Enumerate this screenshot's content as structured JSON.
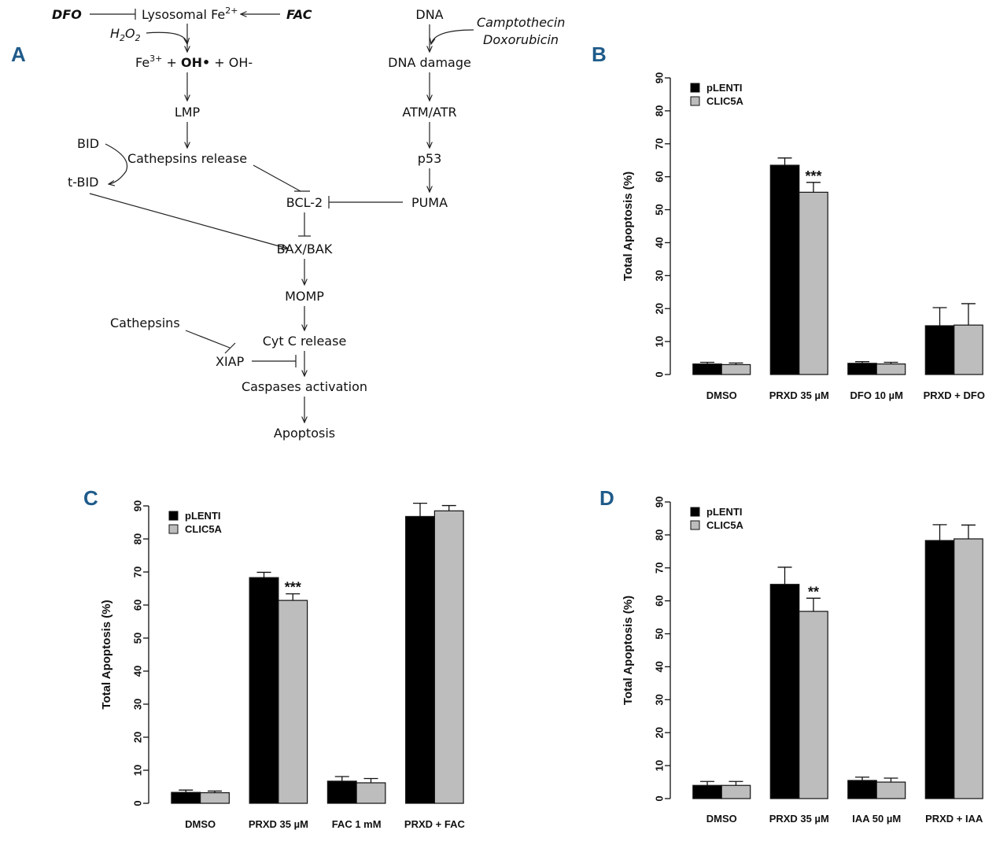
{
  "panel_labels": {
    "A": "A",
    "B": "B",
    "C": "C",
    "D": "D"
  },
  "pathway": {
    "dfo": "DFO",
    "lysosomal": "Lysosomal Fe",
    "lysosomal_sup": "2+",
    "fac": "FAC",
    "h2o2": "H",
    "h2o2_2": "2",
    "h2o2_o": "O",
    "h2o2_3": "2",
    "fe3": "Fe",
    "fe3_sup": "3+",
    "plus1": " + ",
    "oh_radical": "OH•",
    "plus2": " + OH-",
    "lmp": "LMP",
    "cathepsins_release": "Cathepsins release",
    "bid": "BID",
    "tbid": "t-BID",
    "bcl2": "BCL-2",
    "baxbak": "BAX/BAK",
    "momp": "MOMP",
    "cathepsins": "Cathepsins",
    "cytc": "Cyt C release",
    "xiap": "XIAP",
    "caspases": "Caspases activation",
    "apoptosis": "Apoptosis",
    "dna": "DNA",
    "camptothecin": "Camptothecin",
    "doxorubicin": "Doxorubicin",
    "dna_damage": "DNA damage",
    "atm": "ATM/ATR",
    "p53": "p53",
    "puma": "PUMA"
  },
  "chart_data": [
    {
      "panel": "B",
      "type": "bar",
      "ylabel": "Total Apoptosis (%)",
      "ylim": [
        0,
        90
      ],
      "yticks": [
        0,
        10,
        20,
        30,
        40,
        50,
        60,
        70,
        80,
        90
      ],
      "categories": [
        "DMSO",
        "PRXD 35 µM",
        "DFO 10 µM",
        "PRXD + DFO"
      ],
      "series": [
        {
          "name": "pLENTI",
          "color": "#000000",
          "values": [
            3.2,
            63.5,
            3.4,
            14.8
          ],
          "errors": [
            0.5,
            2.2,
            0.5,
            5.5
          ]
        },
        {
          "name": "CLIC5A",
          "color": "#bdbdbd",
          "values": [
            3.0,
            55.3,
            3.2,
            15.0
          ],
          "errors": [
            0.5,
            3.0,
            0.5,
            6.5
          ]
        }
      ],
      "annotations": [
        {
          "category": 1,
          "series": 1,
          "text": "***"
        }
      ],
      "legend": "top-left"
    },
    {
      "panel": "C",
      "type": "bar",
      "ylabel": "Total Apoptosis (%)",
      "ylim": [
        0,
        90
      ],
      "yticks": [
        0,
        10,
        20,
        30,
        40,
        50,
        60,
        70,
        80,
        90
      ],
      "categories": [
        "DMSO",
        "PRXD 35 µM",
        "FAC 1 mM",
        "PRXD + FAC"
      ],
      "series": [
        {
          "name": "pLENTI",
          "color": "#000000",
          "values": [
            3.3,
            68.3,
            6.7,
            86.8
          ],
          "errors": [
            0.7,
            1.6,
            1.4,
            4.0
          ]
        },
        {
          "name": "CLIC5A",
          "color": "#bdbdbd",
          "values": [
            3.2,
            61.4,
            6.2,
            88.5
          ],
          "errors": [
            0.5,
            2.0,
            1.3,
            1.6
          ]
        }
      ],
      "annotations": [
        {
          "category": 1,
          "series": 1,
          "text": "***"
        }
      ],
      "legend": "top-left"
    },
    {
      "panel": "D",
      "type": "bar",
      "ylabel": "Total Apoptosis (%)",
      "ylim": [
        0,
        90
      ],
      "yticks": [
        0,
        10,
        20,
        30,
        40,
        50,
        60,
        70,
        80,
        90
      ],
      "categories": [
        "DMSO",
        "PRXD 35 µM",
        "IAA 50 µM",
        "PRXD + IAA"
      ],
      "series": [
        {
          "name": "pLENTI",
          "color": "#000000",
          "values": [
            4.0,
            65.0,
            5.5,
            78.3
          ],
          "errors": [
            1.2,
            5.2,
            1.0,
            4.8
          ]
        },
        {
          "name": "CLIC5A",
          "color": "#bdbdbd",
          "values": [
            4.0,
            56.8,
            5.0,
            78.8
          ],
          "errors": [
            1.2,
            4.0,
            1.2,
            4.2
          ]
        }
      ],
      "annotations": [
        {
          "category": 1,
          "series": 1,
          "text": "**"
        }
      ],
      "legend": "top-left"
    }
  ]
}
